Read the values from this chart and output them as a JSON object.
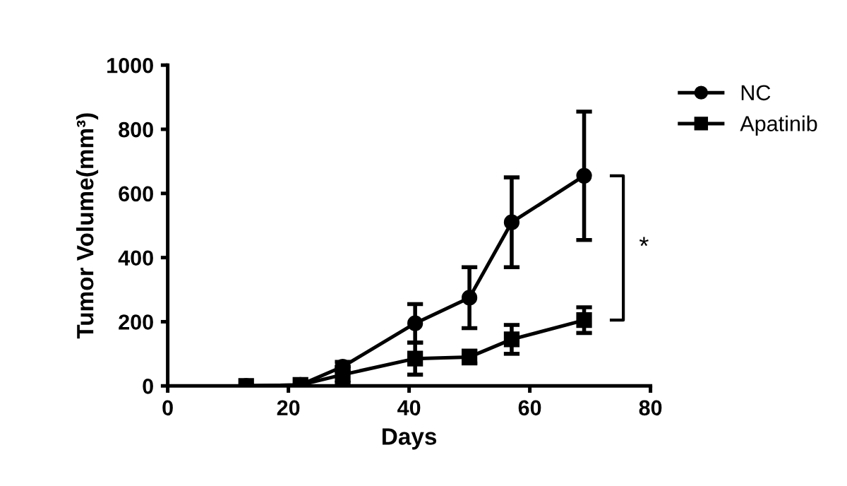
{
  "chart_data": {
    "type": "line",
    "xlabel": "Days",
    "ylabel": "Tumor Volume(mm³)",
    "x": [
      13,
      22,
      29,
      41,
      50,
      57,
      69
    ],
    "series": [
      {
        "name": "NC",
        "color": "#000000",
        "marker": "circle",
        "values": [
          0,
          3,
          60,
          195,
          275,
          510,
          655
        ],
        "errors": [
          null,
          null,
          15,
          60,
          95,
          140,
          200
        ]
      },
      {
        "name": "Apatinib",
        "color": "#000000",
        "marker": "square",
        "values": [
          0,
          3,
          35,
          85,
          90,
          145,
          205
        ],
        "errors": [
          null,
          null,
          25,
          50,
          20,
          45,
          40
        ]
      }
    ],
    "xlim": [
      0,
      80
    ],
    "xticks": [
      0,
      20,
      40,
      60,
      80
    ],
    "ylim": [
      0,
      1000
    ],
    "yticks": [
      0,
      200,
      400,
      600,
      800,
      1000
    ],
    "annotations": [
      "*"
    ],
    "legend": "top right",
    "grid": false,
    "line_style": "solid"
  }
}
